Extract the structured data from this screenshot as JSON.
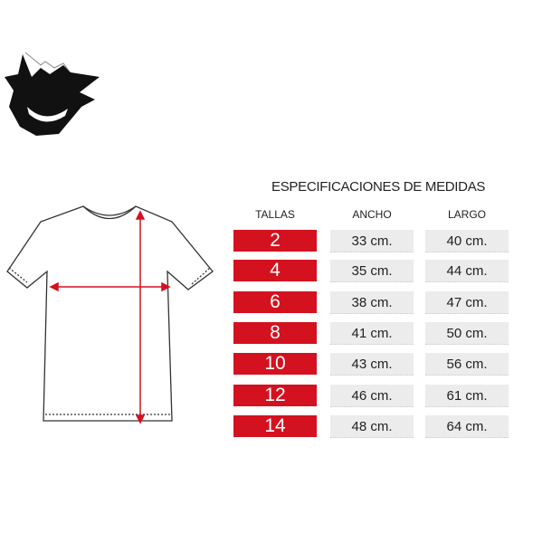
{
  "title": "ESPECIFICACIONES DE MEDIDAS",
  "headers": {
    "size": "TALLAS",
    "width": "ANCHO",
    "length": "LARGO"
  },
  "rows": [
    {
      "size": "2",
      "width": "33 cm.",
      "length": "40 cm."
    },
    {
      "size": "4",
      "width": "35 cm.",
      "length": "44 cm."
    },
    {
      "size": "6",
      "width": "38 cm.",
      "length": "47 cm."
    },
    {
      "size": "8",
      "width": "41 cm.",
      "length": "50 cm."
    },
    {
      "size": "10",
      "width": "43 cm.",
      "length": "56 cm."
    },
    {
      "size": "12",
      "width": "46 cm.",
      "length": "61 cm."
    },
    {
      "size": "14",
      "width": "48 cm.",
      "length": "64 cm."
    }
  ],
  "colors": {
    "accent": "#d4111f",
    "cell": "#ececec"
  },
  "icons": {
    "logo": "gengar-ghost-logo",
    "diagram": "tshirt-measure-diagram"
  }
}
